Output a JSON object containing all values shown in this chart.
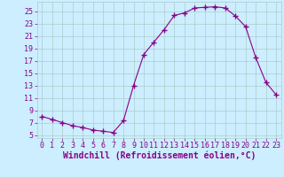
{
  "x": [
    0,
    1,
    2,
    3,
    4,
    5,
    6,
    7,
    8,
    9,
    10,
    11,
    12,
    13,
    14,
    15,
    16,
    17,
    18,
    19,
    20,
    21,
    22,
    23
  ],
  "y": [
    8.0,
    7.5,
    7.0,
    6.5,
    6.2,
    5.8,
    5.6,
    5.4,
    7.3,
    13.0,
    18.0,
    20.0,
    22.0,
    24.3,
    24.7,
    25.5,
    25.6,
    25.7,
    25.5,
    24.2,
    22.5,
    17.5,
    13.5,
    11.5
  ],
  "line_color": "#880088",
  "marker": "+",
  "marker_size": 4,
  "marker_linewidth": 1.0,
  "bg_color": "#cceeff",
  "grid_color": "#aacccc",
  "xlabel": "Windchill (Refroidissement éolien,°C)",
  "ylabel_ticks": [
    5,
    7,
    9,
    11,
    13,
    15,
    17,
    19,
    21,
    23,
    25
  ],
  "xlim": [
    -0.5,
    23.5
  ],
  "ylim": [
    4.5,
    26.5
  ],
  "tick_fontsize": 6.0,
  "label_fontsize": 7.0,
  "linewidth": 0.8
}
